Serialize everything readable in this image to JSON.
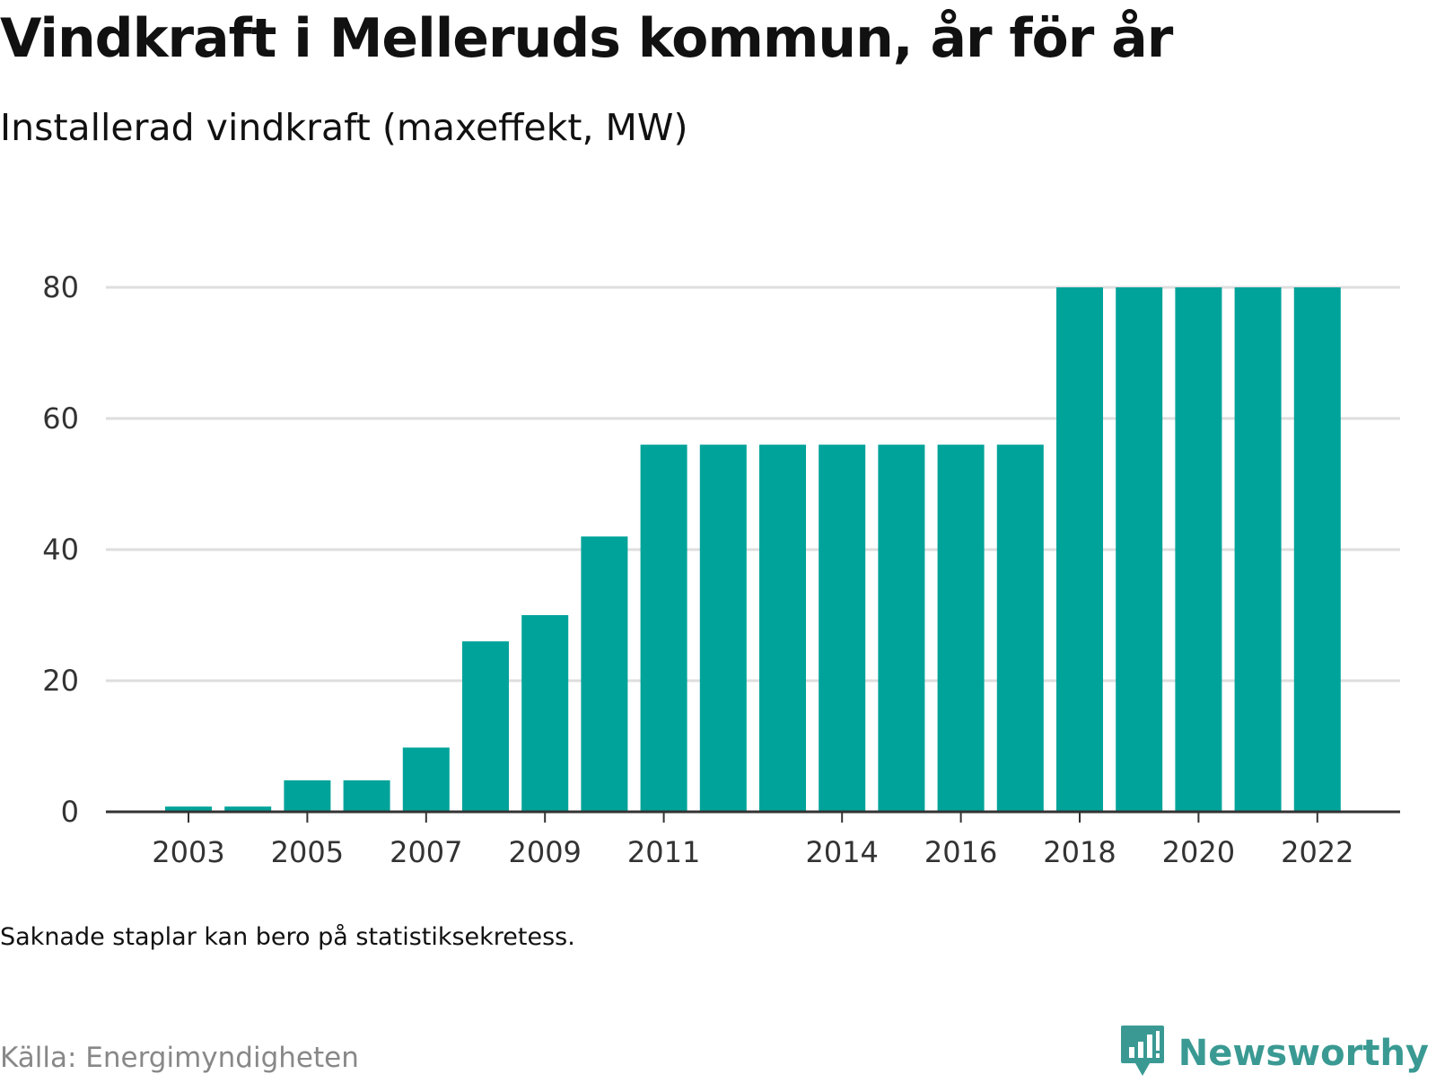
{
  "title": "Vindkraft i Melleruds kommun, år för år",
  "subtitle": "Installerad vindkraft (maxeffekt, MW)",
  "note": "Saknade staplar kan bero på statistiksekretess.",
  "source": "Källa: Energimyndigheten",
  "brand": "Newsworthy",
  "colors": {
    "bar": "#00a39a",
    "grid": "#dedede",
    "axis": "#333333",
    "brand": "#3a9a93"
  },
  "chart_data": {
    "type": "bar",
    "title": "Vindkraft i Melleruds kommun, år för år",
    "subtitle": "Installerad vindkraft (maxeffekt, MW)",
    "categories": [
      "2003",
      "2004",
      "2005",
      "2006",
      "2007",
      "2008",
      "2009",
      "2010",
      "2011",
      "2012",
      "2013",
      "2014",
      "2015",
      "2016",
      "2017",
      "2018",
      "2019",
      "2020",
      "2021",
      "2022"
    ],
    "values": [
      0.8,
      0.8,
      4.8,
      4.8,
      9.8,
      26,
      30,
      42,
      56,
      56,
      56,
      56,
      56,
      56,
      56,
      80,
      80,
      80,
      80,
      80
    ],
    "x_tick_labels": [
      "2003",
      "2005",
      "2007",
      "2009",
      "2011",
      "2014",
      "2016",
      "2018",
      "2020",
      "2022"
    ],
    "y_ticks": [
      0,
      20,
      40,
      60,
      80
    ],
    "ylim": [
      0,
      80
    ],
    "grid": true,
    "legend": "none"
  }
}
